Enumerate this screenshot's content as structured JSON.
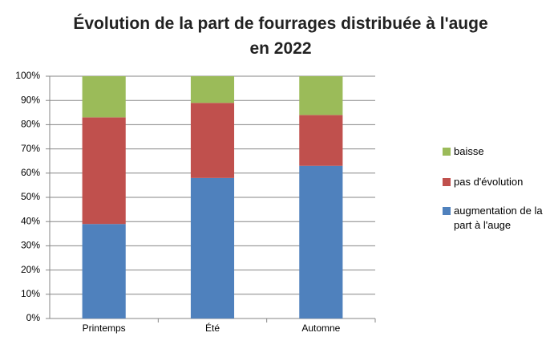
{
  "chart_data": {
    "type": "stacked_bar",
    "title": "Évolution de la part de fourrages distribuée à l'auge en 2022",
    "categories": [
      "Printemps",
      "Été",
      "Automne"
    ],
    "series": [
      {
        "name": "augmentation de la part à l'auge",
        "color": "#4f81bd",
        "values": [
          39,
          58,
          63
        ]
      },
      {
        "name": "pas d'évolution",
        "color": "#c0504d",
        "values": [
          44,
          31,
          21
        ]
      },
      {
        "name": "baisse",
        "color": "#9bbb59",
        "values": [
          17,
          11,
          16
        ]
      }
    ],
    "ylim": [
      0,
      100
    ],
    "yticks": [
      {
        "value": 0,
        "label": "0%"
      },
      {
        "value": 10,
        "label": "10%"
      },
      {
        "value": 20,
        "label": "20%"
      },
      {
        "value": 30,
        "label": "30%"
      },
      {
        "value": 40,
        "label": "40%"
      },
      {
        "value": 50,
        "label": "50%"
      },
      {
        "value": 60,
        "label": "60%"
      },
      {
        "value": 70,
        "label": "70%"
      },
      {
        "value": 80,
        "label": "80%"
      },
      {
        "value": 90,
        "label": "90%"
      },
      {
        "value": 100,
        "label": "100%"
      }
    ],
    "grid": true,
    "legend": "right"
  }
}
